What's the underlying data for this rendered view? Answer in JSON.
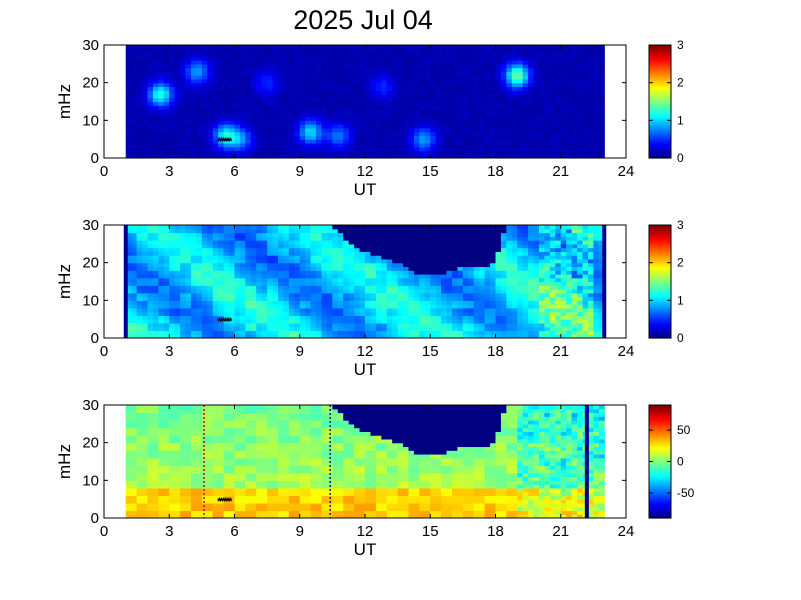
{
  "title": "2025 Jul 04",
  "chart_data": [
    {
      "type": "heatmap",
      "xlabel": "UT",
      "ylabel": "mHz",
      "xlim": [
        0,
        24
      ],
      "ylim": [
        0,
        30
      ],
      "xticks": [
        0,
        3,
        6,
        9,
        12,
        15,
        18,
        21,
        24
      ],
      "yticks": [
        0,
        10,
        20,
        30
      ],
      "data_range_ut": [
        1,
        23
      ],
      "colorbar": {
        "colormap": "jet",
        "range": [
          0,
          3
        ],
        "ticks": [
          0,
          1,
          2,
          3
        ]
      },
      "background_level": 0.1,
      "features": [
        {
          "ut": 2.6,
          "mhz": 17,
          "level": 1.1
        },
        {
          "ut": 4.3,
          "mhz": 23,
          "level": 0.7
        },
        {
          "ut": 5.6,
          "mhz": 6,
          "level": 1.0
        },
        {
          "ut": 6.3,
          "mhz": 5,
          "level": 0.6
        },
        {
          "ut": 9.5,
          "mhz": 7,
          "level": 0.9
        },
        {
          "ut": 10.8,
          "mhz": 6,
          "level": 0.6
        },
        {
          "ut": 12.8,
          "mhz": 19,
          "level": 0.35
        },
        {
          "ut": 14.7,
          "mhz": 5,
          "level": 0.7
        },
        {
          "ut": 19.0,
          "mhz": 22,
          "level": 1.3
        },
        {
          "ut": 7.5,
          "mhz": 20,
          "level": 0.35
        }
      ],
      "markers": {
        "ut": [
          5.3,
          5.4,
          5.5,
          5.6,
          5.7,
          5.8
        ],
        "mhz": 4.5,
        "symbol": "*"
      }
    },
    {
      "type": "heatmap",
      "xlabel": "UT",
      "ylabel": "mHz",
      "xlim": [
        0,
        24
      ],
      "ylim": [
        0,
        30
      ],
      "xticks": [
        0,
        3,
        6,
        9,
        12,
        15,
        18,
        21,
        24
      ],
      "yticks": [
        0,
        10,
        20,
        30
      ],
      "data_range_ut": [
        1,
        23
      ],
      "colorbar": {
        "colormap": "jet",
        "range": [
          0,
          3
        ],
        "ticks": [
          0,
          1,
          2,
          3
        ]
      },
      "background_level": 1.0,
      "edge_lines_ut": [
        1,
        23
      ],
      "gap_boundary": {
        "ut": [
          10.5,
          11.5,
          12.5,
          13.5,
          14.5,
          15.5,
          16.5,
          17.5,
          18.0,
          18.5
        ],
        "mhz": [
          30,
          24,
          22,
          20,
          17,
          17,
          19,
          19,
          20,
          30
        ],
        "level": 0
      },
      "markers": {
        "ut": [
          5.3,
          5.4,
          5.5,
          5.6,
          5.7,
          5.8
        ],
        "mhz": 4.5,
        "symbol": "*"
      }
    },
    {
      "type": "heatmap",
      "xlabel": "UT",
      "ylabel": "mHz",
      "xlim": [
        0,
        24
      ],
      "ylim": [
        0,
        30
      ],
      "xticks": [
        0,
        3,
        6,
        9,
        12,
        15,
        18,
        21,
        24
      ],
      "yticks": [
        0,
        10,
        20,
        30
      ],
      "data_range_ut": [
        1,
        23
      ],
      "colorbar": {
        "colormap": "jet",
        "range": [
          -90,
          90
        ],
        "ticks": [
          50,
          0,
          -50
        ]
      },
      "background_level": 10,
      "gap_boundary": {
        "ut": [
          10.5,
          11.5,
          12.5,
          13.5,
          14.5,
          15.5,
          16.5,
          17.5,
          18.0,
          18.5
        ],
        "mhz": [
          30,
          24,
          22,
          20,
          17,
          17,
          19,
          19,
          20,
          30
        ],
        "level": -90
      },
      "vertical_dotted_lines_ut": [
        4.6,
        10.4
      ],
      "edge_lines_ut": [
        22.2
      ],
      "markers": {
        "ut": [
          5.3,
          5.4,
          5.5,
          5.6,
          5.7,
          5.8
        ],
        "mhz": 4.5,
        "symbol": "*"
      }
    }
  ]
}
